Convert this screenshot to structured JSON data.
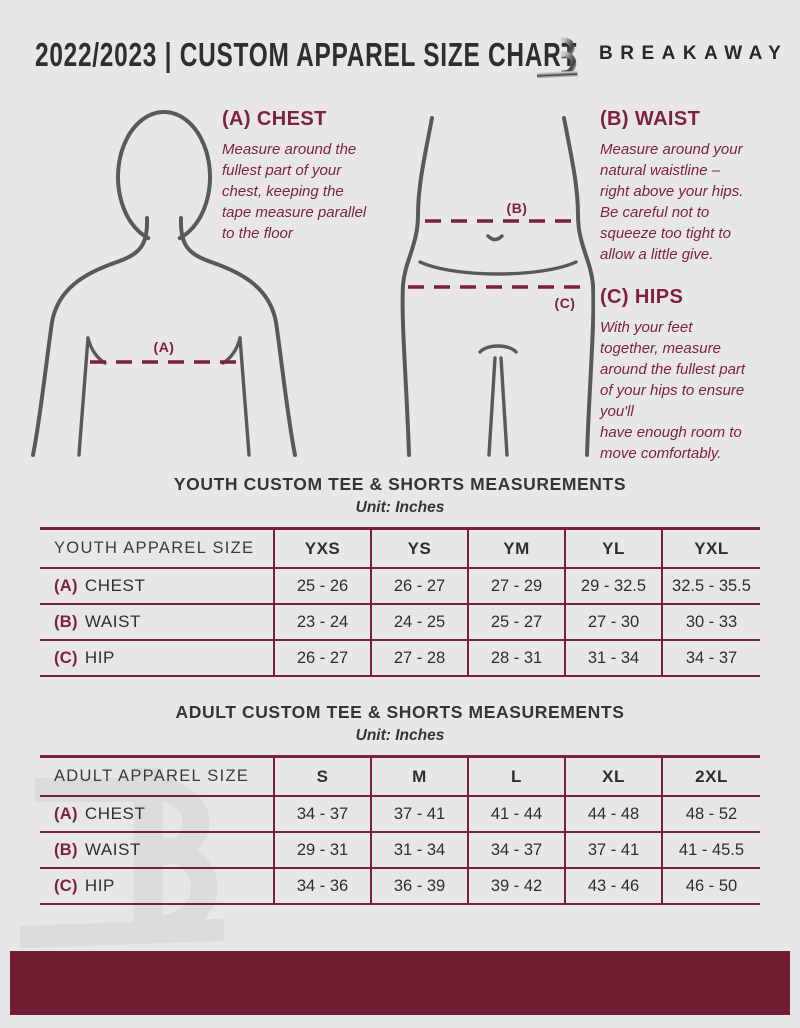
{
  "header": {
    "title": "2022/2023  |  CUSTOM APPAREL SIZE CHART",
    "brand": "BREAKAWAY",
    "logo_icon": "breakaway-b-logo",
    "watermark_icon": "breakaway-b-watermark"
  },
  "measure_guide": {
    "chest": {
      "marker": "(A)",
      "heading": "(A) CHEST",
      "body": "Measure around the\nfullest part of your\nchest, keeping the\ntape measure parallel\nto the floor"
    },
    "waist": {
      "marker": "(B)",
      "heading": "(B) WAIST",
      "body": "Measure around your\nnatural waistline –\nright above your hips.\nBe careful not to\nsqueeze too tight to\nallow a little give."
    },
    "hips": {
      "marker": "(C)",
      "heading": "(C) HIPS",
      "body": "With your feet\ntogether, measure\naround the fullest part\nof your hips to ensure\nyou'll\nhave enough room to\nmove comfortably."
    }
  },
  "youth_table": {
    "title": "YOUTH CUSTOM TEE & SHORTS MEASUREMENTS",
    "unit": "Unit: Inches",
    "header": [
      "YOUTH APPAREL SIZE",
      "YXS",
      "YS",
      "YM",
      "YL",
      "YXL"
    ],
    "rows": [
      {
        "prefix": "(A)",
        "label": "CHEST",
        "values": [
          "25 - 26",
          "26 - 27",
          "27 - 29",
          "29 - 32.5",
          "32.5 - 35.5"
        ]
      },
      {
        "prefix": "(B)",
        "label": "WAIST",
        "values": [
          "23 - 24",
          "24 - 25",
          "25 - 27",
          "27 - 30",
          "30 - 33"
        ]
      },
      {
        "prefix": "(C)",
        "label": "HIP",
        "values": [
          "26 - 27",
          "27 - 28",
          "28 - 31",
          "31 - 34",
          "34 - 37"
        ]
      }
    ]
  },
  "adult_table": {
    "title": "ADULT CUSTOM TEE & SHORTS MEASUREMENTS",
    "unit": "Unit: Inches",
    "header": [
      "ADULT APPAREL SIZE",
      "S",
      "M",
      "L",
      "XL",
      "2XL"
    ],
    "rows": [
      {
        "prefix": "(A)",
        "label": "CHEST",
        "values": [
          "34 - 37",
          "37 - 41",
          "41 - 44",
          "44 - 48",
          "48 - 52"
        ]
      },
      {
        "prefix": "(B)",
        "label": "WAIST",
        "values": [
          "29 - 31",
          "31 - 34",
          "34 - 37",
          "37 - 41",
          "41 - 45.5"
        ]
      },
      {
        "prefix": "(C)",
        "label": "HIP",
        "values": [
          "34 - 36",
          "36 - 39",
          "39 - 42",
          "43 - 46",
          "46 - 50"
        ]
      }
    ]
  },
  "colors": {
    "accent": "#7e2140",
    "table_line": "#7a2038",
    "footer_bar": "#731d33",
    "figure_stroke": "#58595b",
    "background": "#e7e7e9",
    "text_dark": "#2e2e30",
    "watermark": "#dcdcdf"
  }
}
